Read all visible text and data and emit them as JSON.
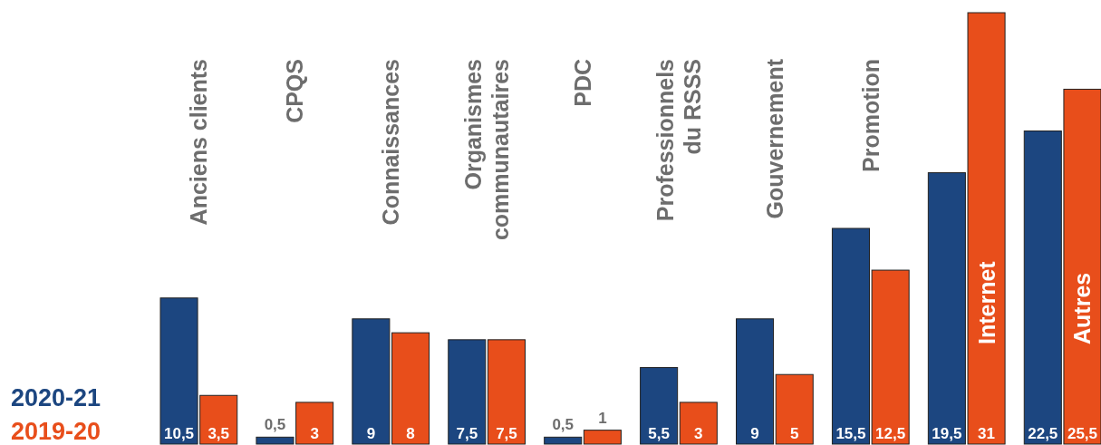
{
  "chart_data": {
    "type": "bar",
    "categories": [
      "Anciens clients",
      "CPQS",
      "Connaissances",
      "Organismes\ncommunautaires",
      "PDC",
      "Professionnels\ndu RSSS",
      "Gouvernement",
      "Promotion",
      "Internet",
      "Autres"
    ],
    "series": [
      {
        "name": "2020-21",
        "color": "#1c4680",
        "values": [
          10.5,
          0.5,
          9,
          7.5,
          0.5,
          5.5,
          9,
          15.5,
          19.5,
          22.5
        ],
        "value_labels": [
          "10,5",
          "0,5",
          "9",
          "7,5",
          "0,5",
          "5,5",
          "9",
          "15,5",
          "19,5",
          "22,5"
        ]
      },
      {
        "name": "2019-20",
        "color": "#e84e1b",
        "values": [
          3.5,
          3,
          8,
          7.5,
          1,
          3,
          5,
          12.5,
          31,
          25.5
        ],
        "value_labels": [
          "3,5",
          "3",
          "8",
          "7,5",
          "1",
          "3",
          "5",
          "12,5",
          "31",
          "25,5"
        ]
      }
    ],
    "relative": false,
    "legend": "bottom left"
  }
}
